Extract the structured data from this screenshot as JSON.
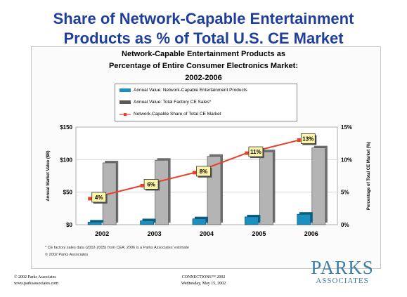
{
  "slide": {
    "title_line1": "Share of Network-Capable Entertainment",
    "title_line2": "Products as % of Total U.S. CE Market",
    "footnote_1": "* CE factory sales data (2002-2005) from CEA; 2006 is a Parks Associates' estimate",
    "footnote_2": "© 2002 Parks Associates",
    "copyright": "© 2002 Parks Associates",
    "website": "www.parksassociates.com",
    "conference": "CONNECTIONS™ 2002",
    "date": "Wednesday, May 15, 2002",
    "logo_line1": "PARKS",
    "logo_line2": "ASSOCIATES"
  },
  "chart_data": {
    "type": "bar",
    "title": "Network-Capable Entertainment Products as Percentage of Entire Consumer Electronics Market: 2002-2006",
    "title_lines": [
      "Network-Capable Entertainment Products as",
      "Percentage of Entire Consumer Electronics Market:",
      "2002-2006"
    ],
    "categories": [
      "2002",
      "2003",
      "2004",
      "2005",
      "2006"
    ],
    "ylabel": "Annual Market Value ($B)",
    "ylabel2": "Percentage of Total CE Market (%)",
    "ylim": [
      0,
      150
    ],
    "ylim2": [
      0,
      15
    ],
    "yticks": [
      "$0",
      "$50",
      "$100",
      "$150"
    ],
    "yticks2": [
      "0%",
      "5%",
      "10%",
      "15%"
    ],
    "grid": true,
    "legend_position": "top-center",
    "series": [
      {
        "name": "Annual Value: Network-Capable Entertainment Products",
        "type": "bar",
        "color": "#1a8fc0",
        "values": [
          4,
          6,
          9,
          12,
          16
        ]
      },
      {
        "name": "Annual Value: Total Factory CE Sales*",
        "type": "bar",
        "color": "#b4b4b4",
        "values": [
          95,
          99,
          105,
          112,
          118
        ]
      },
      {
        "name": "Network-Capable Share of Total CE Market",
        "type": "line",
        "color": "#e8402a",
        "values": [
          4,
          6,
          8,
          11,
          13
        ],
        "labels": [
          "4%",
          "6%",
          "8%",
          "11%",
          "13%"
        ]
      }
    ]
  }
}
